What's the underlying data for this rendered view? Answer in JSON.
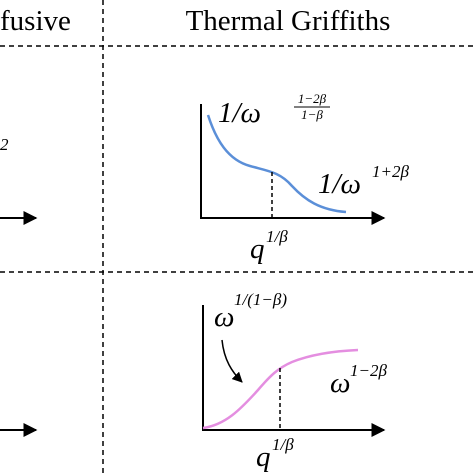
{
  "header": {
    "left": "fusive",
    "right": "Thermal Griffiths"
  },
  "rows": [
    {
      "left_exponent": "2",
      "curve_labels": [
        {
          "base": "1/ω",
          "exp_num": "1−2β",
          "exp_den": "1−β"
        },
        {
          "base": "1/ω",
          "exp": "1+2β"
        }
      ],
      "x_label": {
        "base": "q",
        "exp": "1/β"
      }
    },
    {
      "curve_labels": [
        {
          "base": "ω",
          "exp": "1/(1−β)"
        },
        {
          "base": "ω",
          "exp": "1−2β"
        }
      ],
      "x_label": {
        "base": "q",
        "exp": "1/β"
      }
    }
  ]
}
